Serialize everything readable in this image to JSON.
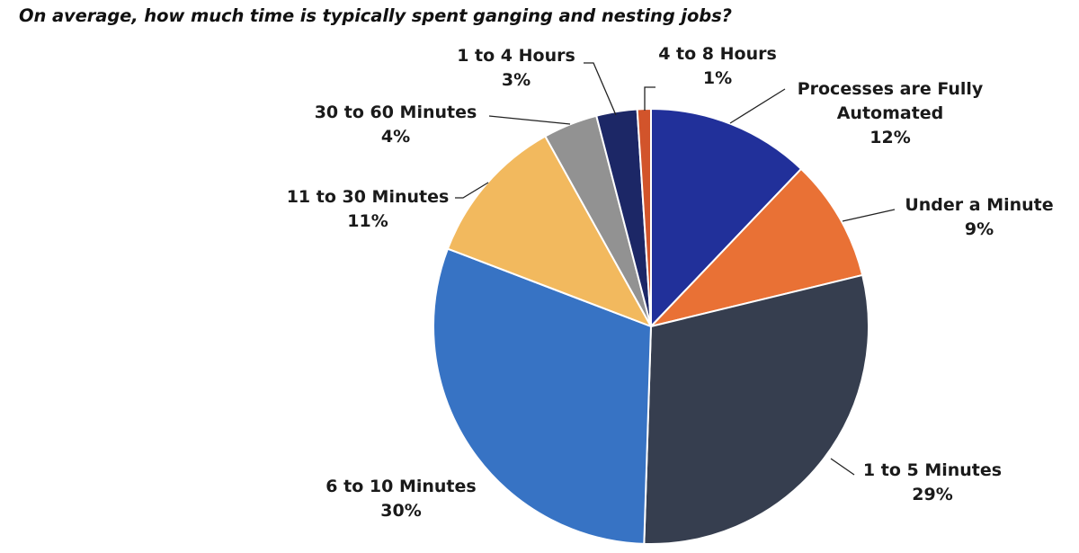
{
  "chart_data": {
    "type": "pie",
    "title": "On average, how much time is typically spent ganging and nesting jobs?",
    "slices": [
      {
        "label_lines": [
          "Processes are Fully",
          "Automated"
        ],
        "percent_label": "12%",
        "value": 12,
        "color": "#21309A"
      },
      {
        "label_lines": [
          "Under a Minute"
        ],
        "percent_label": "9%",
        "value": 9,
        "color": "#E97135"
      },
      {
        "label_lines": [
          "1 to 5 Minutes"
        ],
        "percent_label": "29%",
        "value": 29,
        "color": "#363E4F"
      },
      {
        "label_lines": [
          "6 to 10 Minutes"
        ],
        "percent_label": "30%",
        "value": 30,
        "color": "#3773C4"
      },
      {
        "label_lines": [
          "11 to 30 Minutes"
        ],
        "percent_label": "11%",
        "value": 11,
        "color": "#F2B95E"
      },
      {
        "label_lines": [
          "30 to 60 Minutes"
        ],
        "percent_label": "4%",
        "value": 4,
        "color": "#929292"
      },
      {
        "label_lines": [
          "1 to 4 Hours"
        ],
        "percent_label": "3%",
        "value": 3,
        "color": "#1C2766"
      },
      {
        "label_lines": [
          "4 to 8 Hours"
        ],
        "percent_label": "1%",
        "value": 1,
        "color": "#D2542B"
      }
    ],
    "start_angle_deg": 0,
    "direction": "clockwise",
    "legend": "none",
    "data_labels": "outside with leader lines"
  }
}
